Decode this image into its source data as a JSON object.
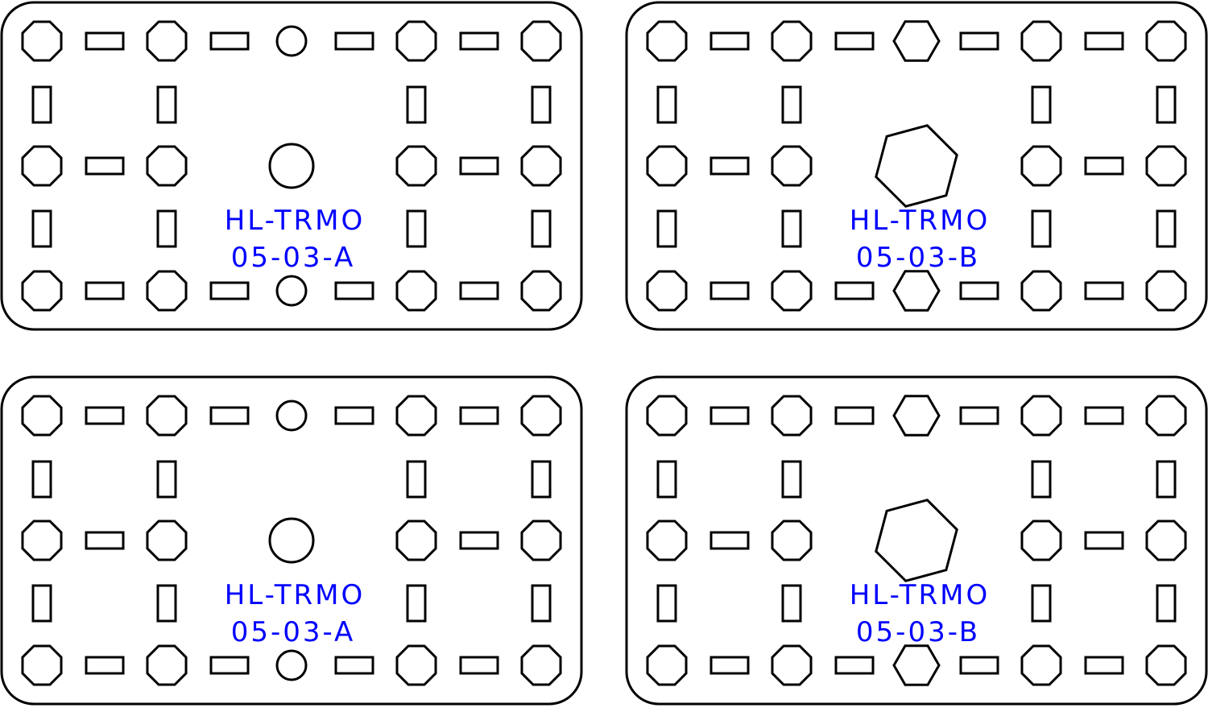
{
  "colors": {
    "stroke": "#000000",
    "label": "#0000ff",
    "background": "#ffffff"
  },
  "panels": [
    {
      "variant": "A",
      "center_shape": "circle",
      "label_line1": "HL-TRMO",
      "label_line2": "05-03-A"
    },
    {
      "variant": "B",
      "center_shape": "hexagon",
      "label_line1": "HL-TRMO",
      "label_line2": "05-03-B"
    },
    {
      "variant": "A",
      "center_shape": "circle",
      "label_line1": "HL-TRMO",
      "label_line2": "05-03-A"
    },
    {
      "variant": "B",
      "center_shape": "hexagon",
      "label_line1": "HL-TRMO",
      "label_line2": "05-03-B"
    }
  ]
}
